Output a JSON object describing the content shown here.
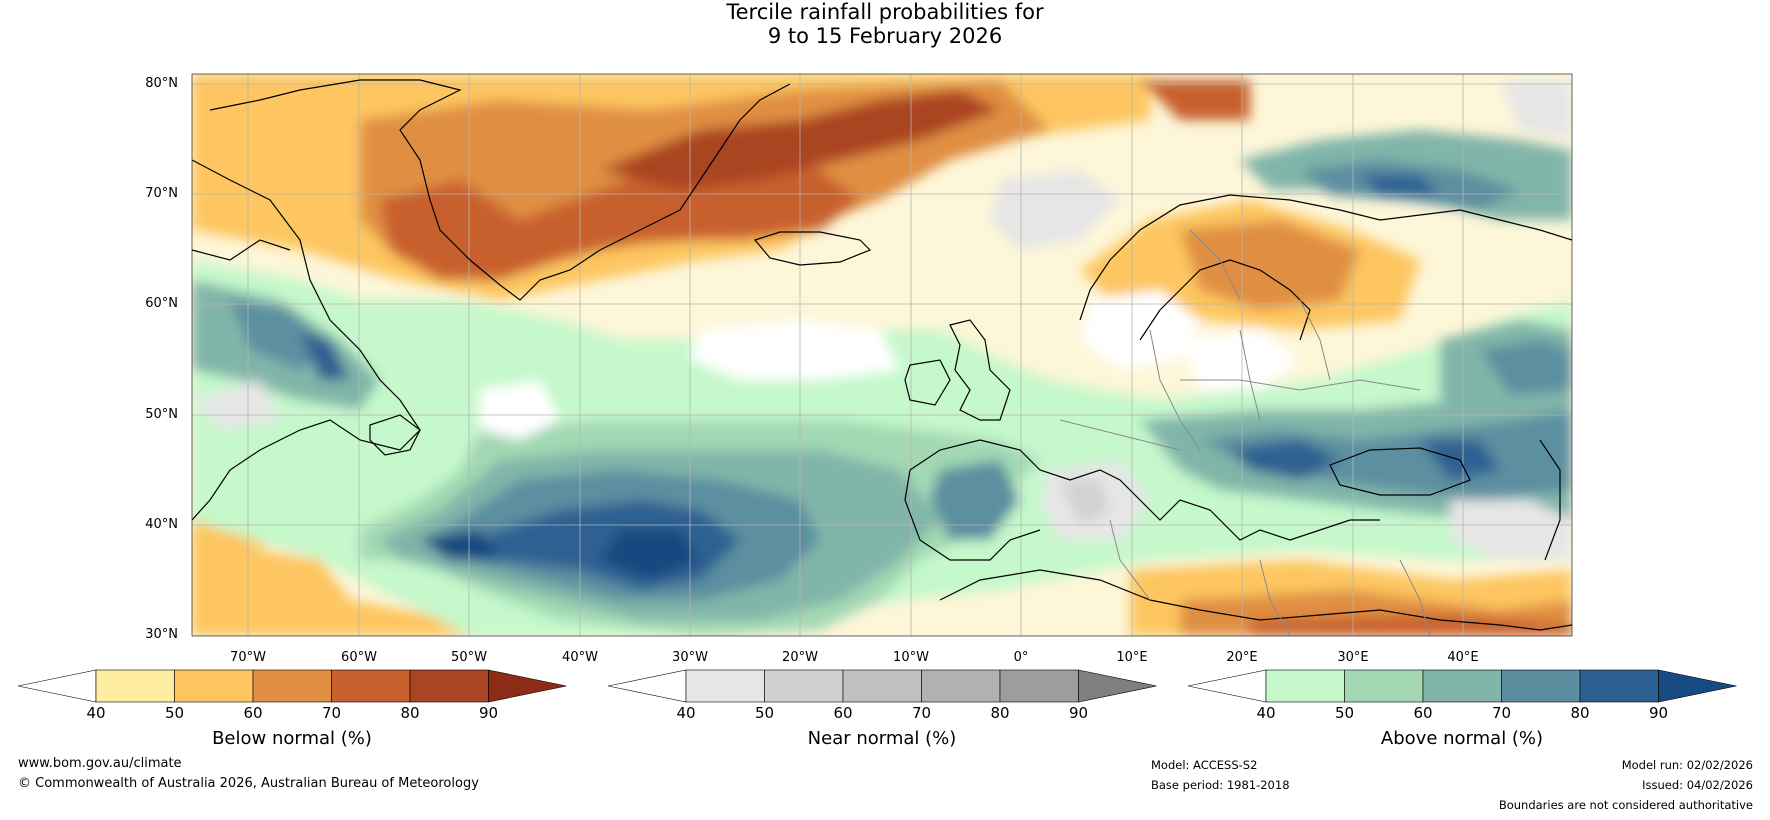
{
  "title": {
    "line1": "Tercile rainfall probabilities for",
    "line2": "9 to 15 February 2026"
  },
  "lat_labels": [
    "80°N",
    "70°N",
    "60°N",
    "50°N",
    "40°N",
    "30°N"
  ],
  "lon_labels": [
    "70°W",
    "60°W",
    "50°W",
    "40°W",
    "30°W",
    "20°W",
    "10°W",
    "0°",
    "10°E",
    "20°E",
    "30°E",
    "40°E"
  ],
  "colorbars": [
    {
      "label": "Below normal (%)",
      "ticks": [
        "40",
        "50",
        "60",
        "70",
        "80",
        "90"
      ],
      "colors": [
        "#ffffff",
        "#ffeea1",
        "#fdc661",
        "#e08f42",
        "#c8602e",
        "#aa4524",
        "#8c2c17"
      ]
    },
    {
      "label": "Near normal (%)",
      "ticks": [
        "40",
        "50",
        "60",
        "70",
        "80",
        "90"
      ],
      "colors": [
        "#ffffff",
        "#e6e6e6",
        "#d1d1d1",
        "#c1c1c1",
        "#b1b1b1",
        "#9d9d9d",
        "#7f7f7f"
      ]
    },
    {
      "label": "Above normal (%)",
      "ticks": [
        "40",
        "50",
        "60",
        "70",
        "80",
        "90"
      ],
      "colors": [
        "#ffffff",
        "#c5f8cb",
        "#a3d8b3",
        "#81b5a9",
        "#5b8fa0",
        "#2d6092",
        "#174a80"
      ]
    }
  ],
  "footer": {
    "website": "www.bom.gov.au/climate",
    "copyright": "© Commonwealth of Australia 2026, Australian Bureau of Meteorology",
    "model": "Model: ACCESS-S2",
    "base_period": "Base period: 1981-2018",
    "model_run": "Model run: 02/02/2026",
    "issued": "Issued: 04/02/2026",
    "disclaimer": "Boundaries are not considered authoritative"
  }
}
